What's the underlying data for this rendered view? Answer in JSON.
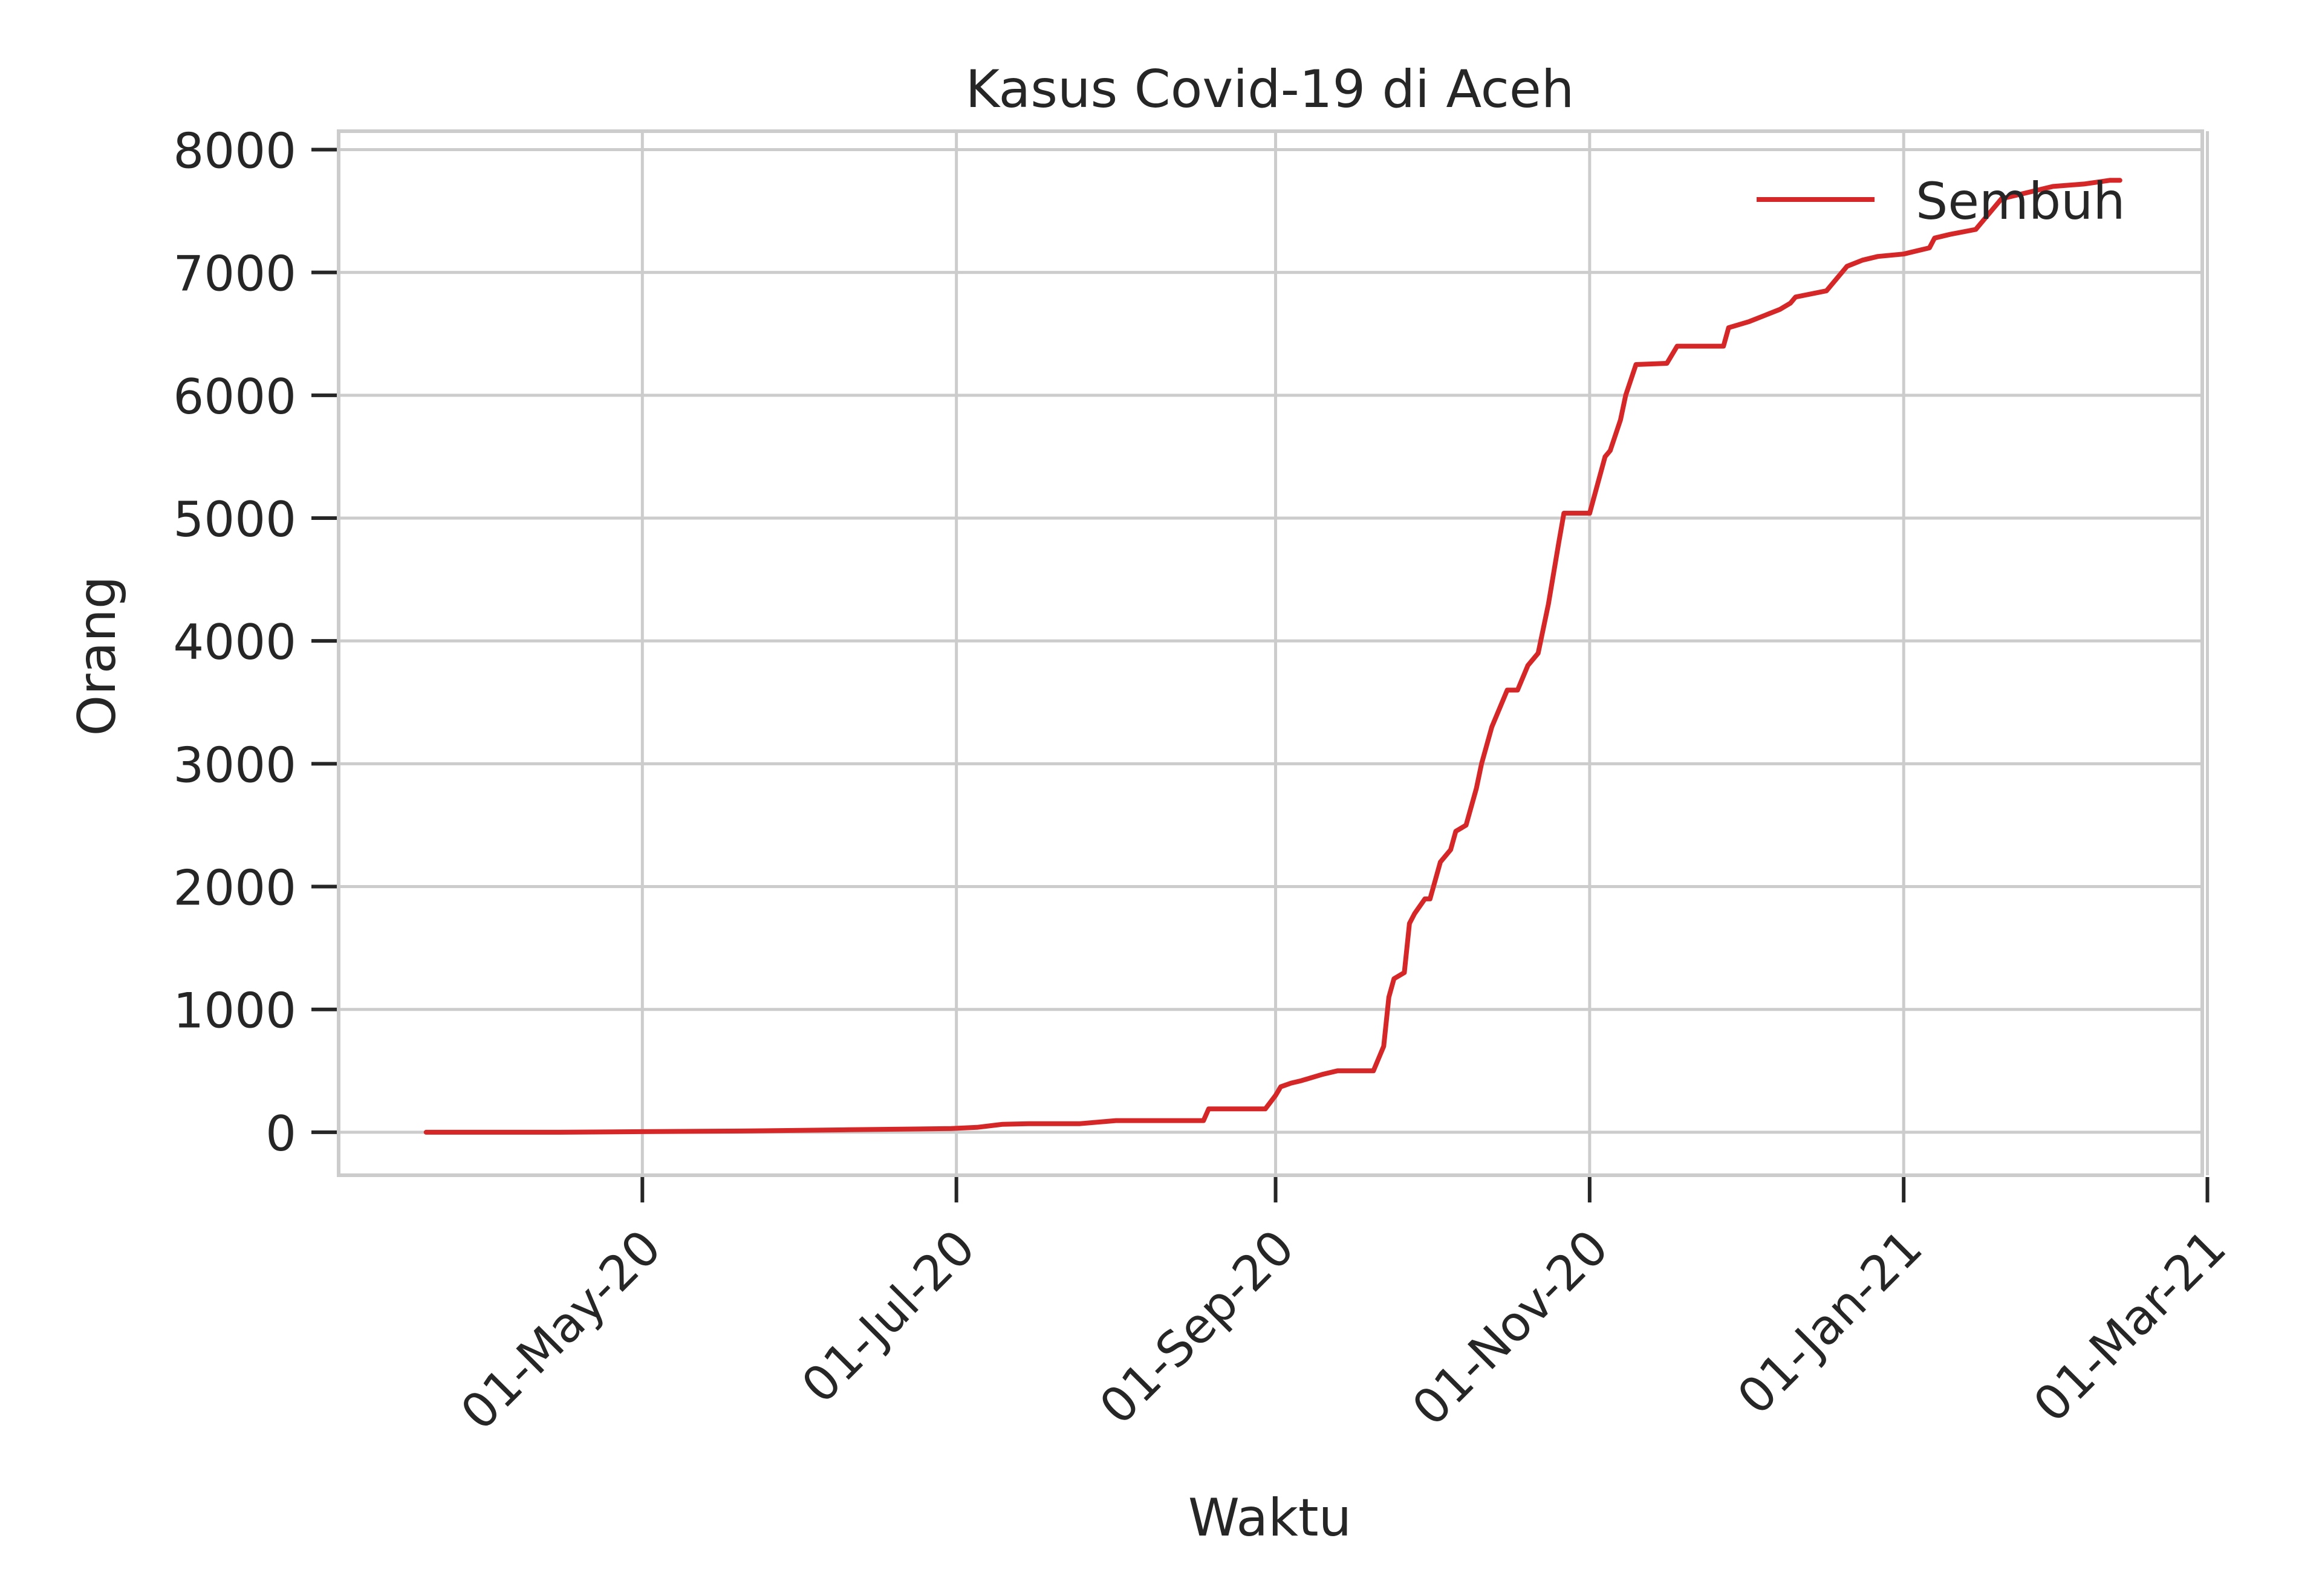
{
  "chart_data": {
    "type": "line",
    "title": "Kasus Covid-19 di Aceh",
    "xlabel": "Waktu",
    "ylabel": "Orang",
    "xlim": [
      "2020-03-03",
      "2021-02-28"
    ],
    "ylim": [
      -350,
      8150
    ],
    "x_ticks": [
      {
        "date": "2020-05-01",
        "label": "01-May-20"
      },
      {
        "date": "2020-07-01",
        "label": "01-Jul-20"
      },
      {
        "date": "2020-09-01",
        "label": "01-Sep-20"
      },
      {
        "date": "2020-11-01",
        "label": "01-Nov-20"
      },
      {
        "date": "2021-01-01",
        "label": "01-Jan-21"
      },
      {
        "date": "2021-03-01",
        "label": "01-Mar-21"
      }
    ],
    "y_ticks": [
      0,
      1000,
      2000,
      3000,
      4000,
      5000,
      6000,
      7000,
      8000
    ],
    "grid": true,
    "legend": "top-right",
    "series": [
      {
        "name": "Sembuh",
        "color": "#d62728",
        "x": [
          "2020-03-20",
          "2020-04-15",
          "2020-05-01",
          "2020-05-20",
          "2020-06-10",
          "2020-06-30",
          "2020-07-05",
          "2020-07-10",
          "2020-07-15",
          "2020-07-25",
          "2020-08-01",
          "2020-08-10",
          "2020-08-18",
          "2020-08-19",
          "2020-08-30",
          "2020-09-01",
          "2020-09-02",
          "2020-09-04",
          "2020-09-06",
          "2020-09-10",
          "2020-09-13",
          "2020-09-15",
          "2020-09-20",
          "2020-09-21",
          "2020-09-22",
          "2020-09-23",
          "2020-09-24",
          "2020-09-26",
          "2020-09-27",
          "2020-09-28",
          "2020-09-30",
          "2020-10-01",
          "2020-10-03",
          "2020-10-05",
          "2020-10-06",
          "2020-10-08",
          "2020-10-10",
          "2020-10-11",
          "2020-10-13",
          "2020-10-15",
          "2020-10-16",
          "2020-10-18",
          "2020-10-20",
          "2020-10-22",
          "2020-10-24",
          "2020-10-26",
          "2020-10-27",
          "2020-10-28",
          "2020-11-01",
          "2020-11-04",
          "2020-11-05",
          "2020-11-07",
          "2020-11-08",
          "2020-11-10",
          "2020-11-16",
          "2020-11-18",
          "2020-11-27",
          "2020-11-28",
          "2020-12-02",
          "2020-12-05",
          "2020-12-08",
          "2020-12-10",
          "2020-12-11",
          "2020-12-17",
          "2020-12-19",
          "2020-12-21",
          "2020-12-24",
          "2020-12-27",
          "2021-01-01",
          "2021-01-06",
          "2021-01-07",
          "2021-01-10",
          "2021-01-15",
          "2021-01-20",
          "2021-01-25",
          "2021-01-30",
          "2021-02-05",
          "2021-02-10",
          "2021-02-12"
        ],
        "values": [
          0,
          0,
          5,
          10,
          20,
          30,
          40,
          65,
          70,
          70,
          95,
          95,
          95,
          190,
          190,
          300,
          370,
          400,
          420,
          470,
          500,
          500,
          500,
          600,
          700,
          1100,
          1250,
          1300,
          1700,
          1780,
          1900,
          1900,
          2200,
          2300,
          2450,
          2500,
          2800,
          3000,
          3300,
          3500,
          3600,
          3600,
          3800,
          3900,
          4300,
          4800,
          5040,
          5040,
          5040,
          5500,
          5550,
          5800,
          6000,
          6250,
          6260,
          6400,
          6400,
          6550,
          6600,
          6650,
          6700,
          6750,
          6800,
          6850,
          6950,
          7050,
          7100,
          7130,
          7150,
          7200,
          7280,
          7310,
          7350,
          7600,
          7650,
          7700,
          7720,
          7750,
          7750
        ]
      }
    ]
  }
}
